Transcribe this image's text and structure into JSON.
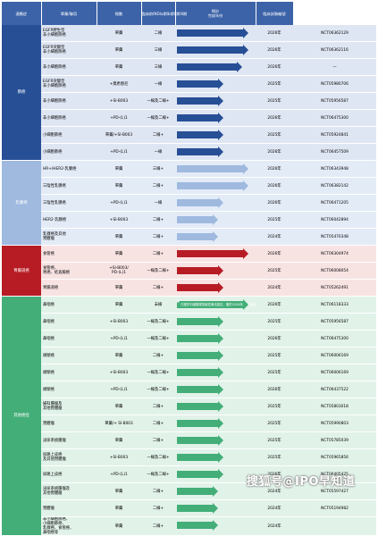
{
  "header": {
    "group": "適應症",
    "combo": "單藥/聯用",
    "line": "線數",
    "phase": "臨床前",
    "ind": "IND",
    "ph1a": "Ia期",
    "ph1b": "Ib期",
    "ph2": "II期",
    "ph3": "III期",
    "year": "預計\n完成年份",
    "nct": "臨床試驗編號"
  },
  "colors": {
    "blue": "#274f96",
    "light_blue": "#9fb9df",
    "red": "#b71c25",
    "green": "#43ae78",
    "header": "#3c63a8"
  },
  "groups": [
    {
      "name": "肺癌",
      "color": "blue",
      "rows": [
        {
          "ind": "EGFR野生型\n非小細胞肺癌",
          "combo": "單藥",
          "line": "二線",
          "bar": 4.6,
          "year": "2026年",
          "nct": "NCT06362129"
        },
        {
          "ind": "EGFR突變型\n非小細胞肺癌",
          "combo": "單藥",
          "line": "三線",
          "bar": 4.6,
          "year": "2026年",
          "nct": "NCT06362116"
        },
        {
          "ind": "非小細胞肺癌",
          "combo": "單藥",
          "line": "三線",
          "bar": 4.2,
          "year": "2026年",
          "nct": "—"
        },
        {
          "ind": "EGFR突變型\n非小細胞肺癌",
          "combo": "+奧希替尼",
          "line": "一線",
          "bar": 2.9,
          "year": "2025年",
          "nct": "NCT05980706"
        },
        {
          "ind": "非小細胞肺癌",
          "combo": "+SI-B003",
          "line": "一線及二線+",
          "bar": 2.9,
          "year": "2025年",
          "nct": "NCT05956587"
        },
        {
          "ind": "非小細胞肺癌",
          "combo": "+PD-(L)1",
          "line": "一線及二線+",
          "bar": 2.9,
          "year": "2026年",
          "nct": "NCT06475300"
        },
        {
          "ind": "小細胞肺癌",
          "combo": "單藥/+SI-B003",
          "line": "二線+",
          "bar": 2.9,
          "year": "2025年",
          "nct": "NCT05924841"
        },
        {
          "ind": "小細胞肺癌",
          "combo": "+PD-(L)1",
          "line": "一線",
          "bar": 2.9,
          "year": "2026年",
          "nct": "NCT06457509"
        }
      ]
    },
    {
      "name": "乳腺癌",
      "color": "light_blue",
      "rows": [
        {
          "ind": "HR+/HER2-乳腺癌",
          "combo": "單藥",
          "line": "三線+",
          "bar": 4.6,
          "year": "2026年",
          "nct": "NCT06343948"
        },
        {
          "ind": "三陰性乳腺癌",
          "combo": "單藥",
          "line": "二線+",
          "bar": 4.6,
          "year": "2026年",
          "nct": "NCT06382142"
        },
        {
          "ind": "三陰性乳腺癌",
          "combo": "+PD-(L)1",
          "line": "一線",
          "bar": 2.9,
          "year": "2026年",
          "nct": "NCT06471205"
        },
        {
          "ind": "HER2-乳腺癌",
          "combo": "+SI-B003",
          "line": "二線+",
          "bar": 2.5,
          "year": "2025年",
          "nct": "NCT06042894"
        },
        {
          "ind": "乳腺癌及其他\n實體瘤",
          "combo": "單藥",
          "line": "二線+",
          "bar": 2.5,
          "year": "2024年",
          "nct": "NCT05470348"
        }
      ]
    },
    {
      "name": "胃腸道癌",
      "color": "red",
      "rows": [
        {
          "ind": "食管癌",
          "combo": "單藥",
          "line": "二線+",
          "bar": 4.6,
          "year": "2026年",
          "nct": "NCT06304974"
        },
        {
          "ind": "食管癌、\n胃癌、結直腸癌",
          "combo": "+SI-B003/\nPD-(L)1",
          "line": "一線及二線+",
          "bar": 2.9,
          "year": "2025年",
          "nct": "NCT06008054"
        },
        {
          "ind": "胃腸道癌",
          "combo": "單藥",
          "line": "二線+",
          "bar": 2.9,
          "year": "2024年",
          "nct": "NCT05262491"
        }
      ]
    },
    {
      "name": "其他癌症",
      "color": "green",
      "rows": [
        {
          "ind": "鼻咽癌",
          "combo": "單藥",
          "line": "末線",
          "bar": 4.6,
          "note": "已經於中國獲得突破性療法認定，擬於2024年4月申請新藥上市",
          "year": "2026年",
          "nct": "NCT06118333"
        },
        {
          "ind": "鼻咽癌",
          "combo": "+SI-B003",
          "line": "一線及二線+",
          "bar": 2.9,
          "year": "2025年",
          "nct": "NCT05956587"
        },
        {
          "ind": "鼻咽癌",
          "combo": "+PD-(L)1",
          "line": "一線及二線+",
          "bar": 2.9,
          "year": "2026年",
          "nct": "NCT06475300"
        },
        {
          "ind": "頭頸癌",
          "combo": "單藥",
          "line": "二線+",
          "bar": 2.9,
          "year": "2025年",
          "nct": "NCT06006169"
        },
        {
          "ind": "頭頸癌",
          "combo": "+SI-B003",
          "line": "一線及二線+",
          "bar": 2.9,
          "year": "2025年",
          "nct": "NCT06006169"
        },
        {
          "ind": "頭頸癌",
          "combo": "+PD-(L)1",
          "line": "一線及二線+",
          "bar": 2.9,
          "year": "2026年",
          "nct": "NCT06437522"
        },
        {
          "ind": "婦科腫瘤及\n其他實體瘤",
          "combo": "單藥",
          "line": "二線+",
          "bar": 2.9,
          "year": "2025年",
          "nct": "NCT05803018"
        },
        {
          "ind": "實體瘤",
          "combo": "單藥/+ SI-B003",
          "line": "二線+",
          "bar": 2.9,
          "year": "2025年",
          "nct": "NCT05990803"
        },
        {
          "ind": "泌尿系統腫瘤",
          "combo": "單藥",
          "line": "二線+",
          "bar": 2.9,
          "year": "2025年",
          "nct": "NCT05785039"
        },
        {
          "ind": "尿路上皮癌\n及其他實體瘤",
          "combo": "+SI-B003",
          "line": "一線及二線+",
          "bar": 2.9,
          "year": "2025年",
          "nct": "NCT05965856"
        },
        {
          "ind": "尿路上皮癌",
          "combo": "+PD-(L)1",
          "line": "一線及二線+",
          "bar": 2.9,
          "year": "2026年",
          "nct": "NCT06405425"
        },
        {
          "ind": "泌尿系統腫瘤及\n其他實體瘤",
          "combo": "單藥",
          "line": "二線+",
          "bar": 2.5,
          "year": "2024年",
          "nct": "NCT05597427"
        },
        {
          "ind": "實體瘤",
          "combo": "單藥",
          "line": "二線+",
          "bar": 2.5,
          "year": "2024年",
          "nct": "NCT05194982"
        },
        {
          "ind": "非小細胞肺癌、\n小細胞肺癌、\n乳腺癌、食管癌、\n鼻咽癌等",
          "combo": "單藥",
          "line": "二線+",
          "bar": 2.5,
          "year": "2024年",
          "nct": ""
        }
      ]
    }
  ],
  "watermark": "搜狐号@IPO早知道"
}
